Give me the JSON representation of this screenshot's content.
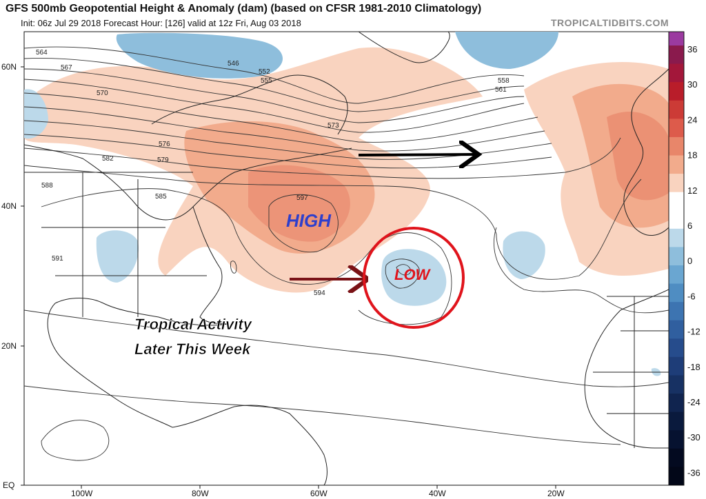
{
  "header": {
    "title": "GFS 500mb Geopotential Height & Anomaly (dam) (based on CFSR 1981-2010 Climatology)",
    "subtitle": "Init: 06z Jul 29 2018   Forecast Hour: [126]   valid at 12z Fri, Aug 03 2018",
    "brand": "TROPICALTIDBITS.COM"
  },
  "colors": {
    "ocean": "#ffffff",
    "land_line": "#222222",
    "contour": "#333333",
    "pos_light": "#f9d3bf",
    "pos_mid": "#f2ab8c",
    "pos_strong": "#e8866a",
    "neg_light": "#bcd9ea",
    "neg_mid": "#8ebedc",
    "neg_strong": "#5a97c4",
    "high_text": "#2e3fcc",
    "low_text": "#e0141c",
    "circle": "#e0141c",
    "arrow_black": "#000000",
    "arrow_red": "#7a1216"
  },
  "axes": {
    "lat_labels": [
      "60N",
      "40N",
      "20N",
      "EQ"
    ],
    "lon_labels": [
      "100W",
      "80W",
      "60W",
      "40W",
      "20W"
    ]
  },
  "colorbar": {
    "values": [
      "36",
      "30",
      "24",
      "18",
      "12",
      "6",
      "0",
      "-6",
      "-12",
      "-18",
      "-24",
      "-30",
      "-36"
    ],
    "colors": [
      "#8a1a4d",
      "#a3173a",
      "#b91d2a",
      "#cc3b36",
      "#dd5b4b",
      "#e8866a",
      "#f2ab8c",
      "#f9d3bf",
      "#ffffff",
      "#ffffff",
      "#bcd9ea",
      "#8ebedc",
      "#6aa6d1",
      "#4f8dc2",
      "#3d74b1",
      "#305f9f",
      "#264c8c",
      "#1e3d78",
      "#173163",
      "#10244f",
      "#0a1a3d",
      "#061230",
      "#030a20",
      "#020718"
    ],
    "top_color": "#9b3aa0"
  },
  "contour_labels": [
    {
      "text": "564"
    },
    {
      "text": "567"
    },
    {
      "text": "570"
    },
    {
      "text": "573"
    },
    {
      "text": "576"
    },
    {
      "text": "579"
    },
    {
      "text": "582"
    },
    {
      "text": "585"
    },
    {
      "text": "588"
    },
    {
      "text": "591"
    },
    {
      "text": "594"
    },
    {
      "text": "597"
    },
    {
      "text": "546"
    },
    {
      "text": "552"
    },
    {
      "text": "555"
    },
    {
      "text": "558"
    },
    {
      "text": "561"
    }
  ],
  "annotations": {
    "high": "HIGH",
    "low": "LOW",
    "tropical_line1": "Tropical Activity",
    "tropical_line2": "Later This Week"
  }
}
